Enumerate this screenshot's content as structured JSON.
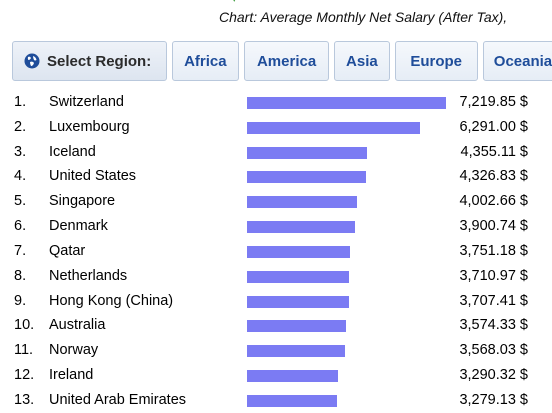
{
  "title": "Chart: Average Monthly Net Salary (After Tax),",
  "region_selector": {
    "label": "Select Region:",
    "label_icon": "globe-icon",
    "regions": [
      "Africa",
      "America",
      "Asia",
      "Europe",
      "Oceania"
    ]
  },
  "chart_data": {
    "type": "bar",
    "orientation": "horizontal",
    "bar_color": "#7b7bf3",
    "rows": [
      {
        "rank": "1.",
        "country": "Switzerland",
        "value": 7219.85,
        "label": "7,219.85 $"
      },
      {
        "rank": "2.",
        "country": "Luxembourg",
        "value": 6291.0,
        "label": "6,291.00 $"
      },
      {
        "rank": "3.",
        "country": "Iceland",
        "value": 4355.11,
        "label": "4,355.11 $"
      },
      {
        "rank": "4.",
        "country": "United States",
        "value": 4326.83,
        "label": "4,326.83 $"
      },
      {
        "rank": "5.",
        "country": "Singapore",
        "value": 4002.66,
        "label": "4,002.66 $"
      },
      {
        "rank": "6.",
        "country": "Denmark",
        "value": 3900.74,
        "label": "3,900.74 $"
      },
      {
        "rank": "7.",
        "country": "Qatar",
        "value": 3751.18,
        "label": "3,751.18 $"
      },
      {
        "rank": "8.",
        "country": "Netherlands",
        "value": 3710.97,
        "label": "3,710.97 $"
      },
      {
        "rank": "9.",
        "country": "Hong Kong (China)",
        "value": 3707.41,
        "label": "3,707.41 $"
      },
      {
        "rank": "10.",
        "country": "Australia",
        "value": 3574.33,
        "label": "3,574.33 $"
      },
      {
        "rank": "11.",
        "country": "Norway",
        "value": 3568.03,
        "label": "3,568.03 $"
      },
      {
        "rank": "12.",
        "country": "Ireland",
        "value": 3290.32,
        "label": "3,290.32 $"
      },
      {
        "rank": "13.",
        "country": "United Arab Emirates",
        "value": 3279.13,
        "label": "3,279.13 $"
      }
    ]
  }
}
